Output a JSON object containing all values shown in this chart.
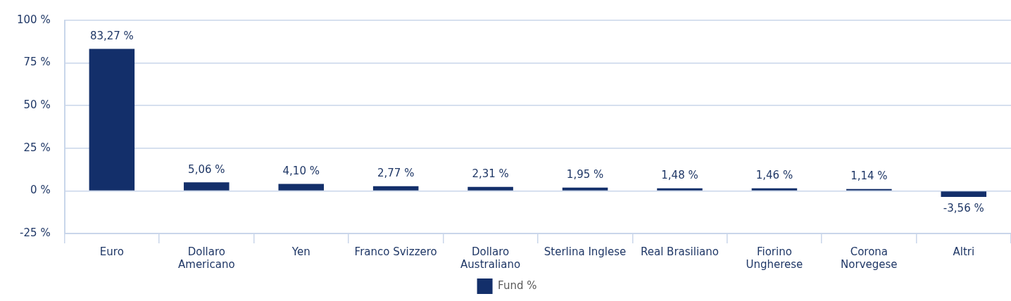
{
  "chart_data": {
    "type": "bar",
    "categories": [
      "Euro",
      "Dollaro Americano",
      "Yen",
      "Franco Svizzero",
      "Dollaro Australiano",
      "Sterlina Inglese",
      "Real Brasiliano",
      "Fiorino Ungherese",
      "Corona Norvegese",
      "Altri"
    ],
    "series": [
      {
        "name": "Fund %",
        "color": "#132f6a",
        "values": [
          83.27,
          5.06,
          4.1,
          2.77,
          2.31,
          1.95,
          1.48,
          1.46,
          1.14,
          -3.56
        ],
        "value_labels": [
          "83,27 %",
          "5,06 %",
          "4,10 %",
          "2,77 %",
          "2,31 %",
          "1,95 %",
          "1,48 %",
          "1,46 %",
          "1,14 %",
          "-3,56 %"
        ]
      }
    ],
    "ylim": [
      -25,
      100
    ],
    "yticks": [
      {
        "value": -25,
        "label": "-25 %"
      },
      {
        "value": 0,
        "label": "0 %"
      },
      {
        "value": 25,
        "label": "25 %"
      },
      {
        "value": 50,
        "label": "50 %"
      },
      {
        "value": 75,
        "label": "75 %"
      },
      {
        "value": 100,
        "label": "100 %"
      }
    ],
    "grid": "y",
    "legend": "bottom"
  }
}
